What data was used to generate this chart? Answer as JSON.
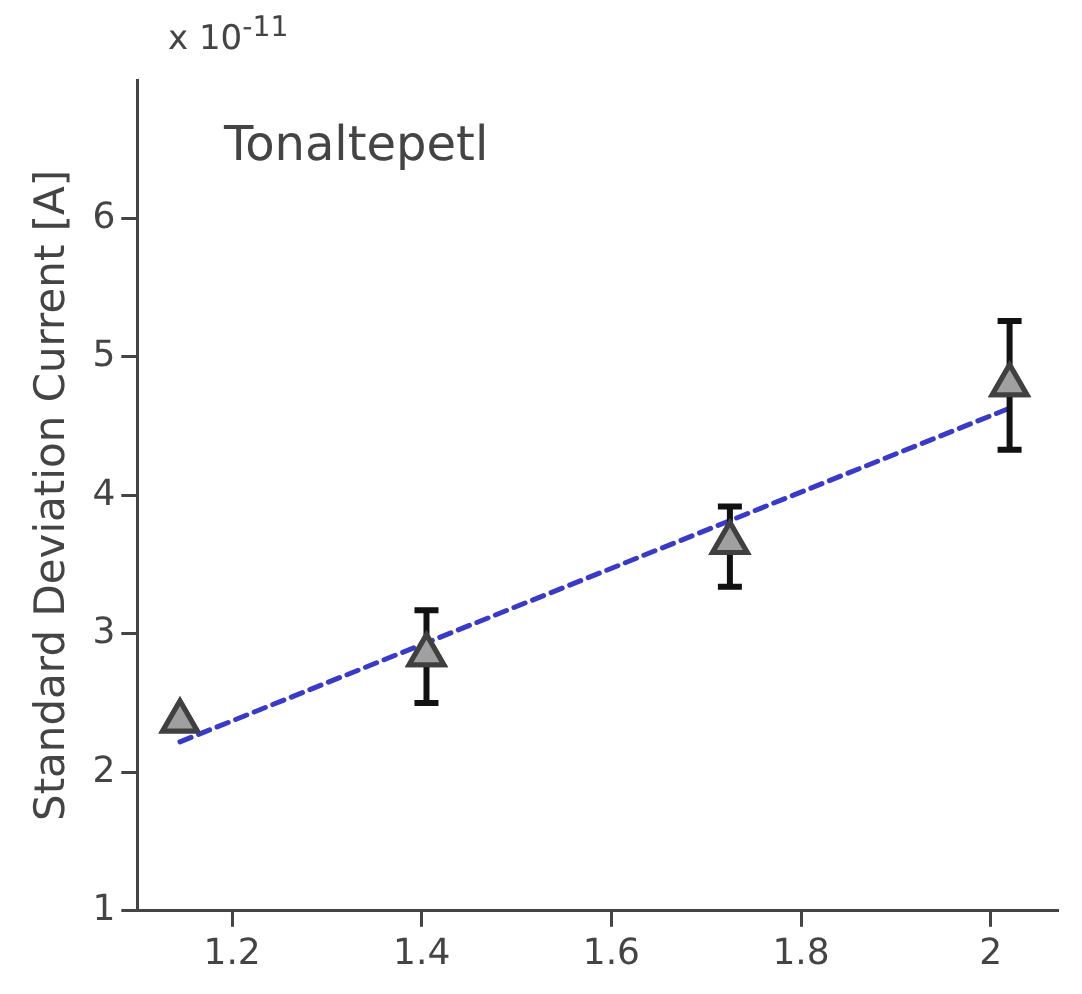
{
  "chart_data": {
    "type": "scatter",
    "ylabel": "Standard Deviation Current [A]",
    "annotations": [
      "x 10$^{-11}$",
      "Tonaltepetl"
    ],
    "series": [
      {
        "color": "#a0a0a0",
        "marker": "triangle",
        "x": [
          1.145,
          1.405,
          1.725,
          2.02
        ],
        "values": [
          2.37,
          2.85,
          3.66,
          4.8
        ],
        "errors": [
          null,
          [
            2.5,
            3.17
          ],
          [
            3.34,
            3.92
          ],
          [
            4.33,
            5.26
          ]
        ]
      },
      {
        "type": "line",
        "color": "#3a3ac8",
        "line_style": "dashed",
        "marker": "none",
        "x": [
          1.145,
          2.02
        ],
        "values": [
          2.22,
          4.63
        ]
      }
    ],
    "xlim": [
      1.1,
      2.07
    ],
    "xticks": [
      1.2,
      1.4,
      1.6,
      1.8,
      {
        "value": 2,
        "label": "2"
      }
    ],
    "ylim": [
      1,
      7
    ],
    "yticks": [
      1,
      2,
      3,
      4,
      5,
      6
    ],
    "grid": false,
    "legend": false
  }
}
